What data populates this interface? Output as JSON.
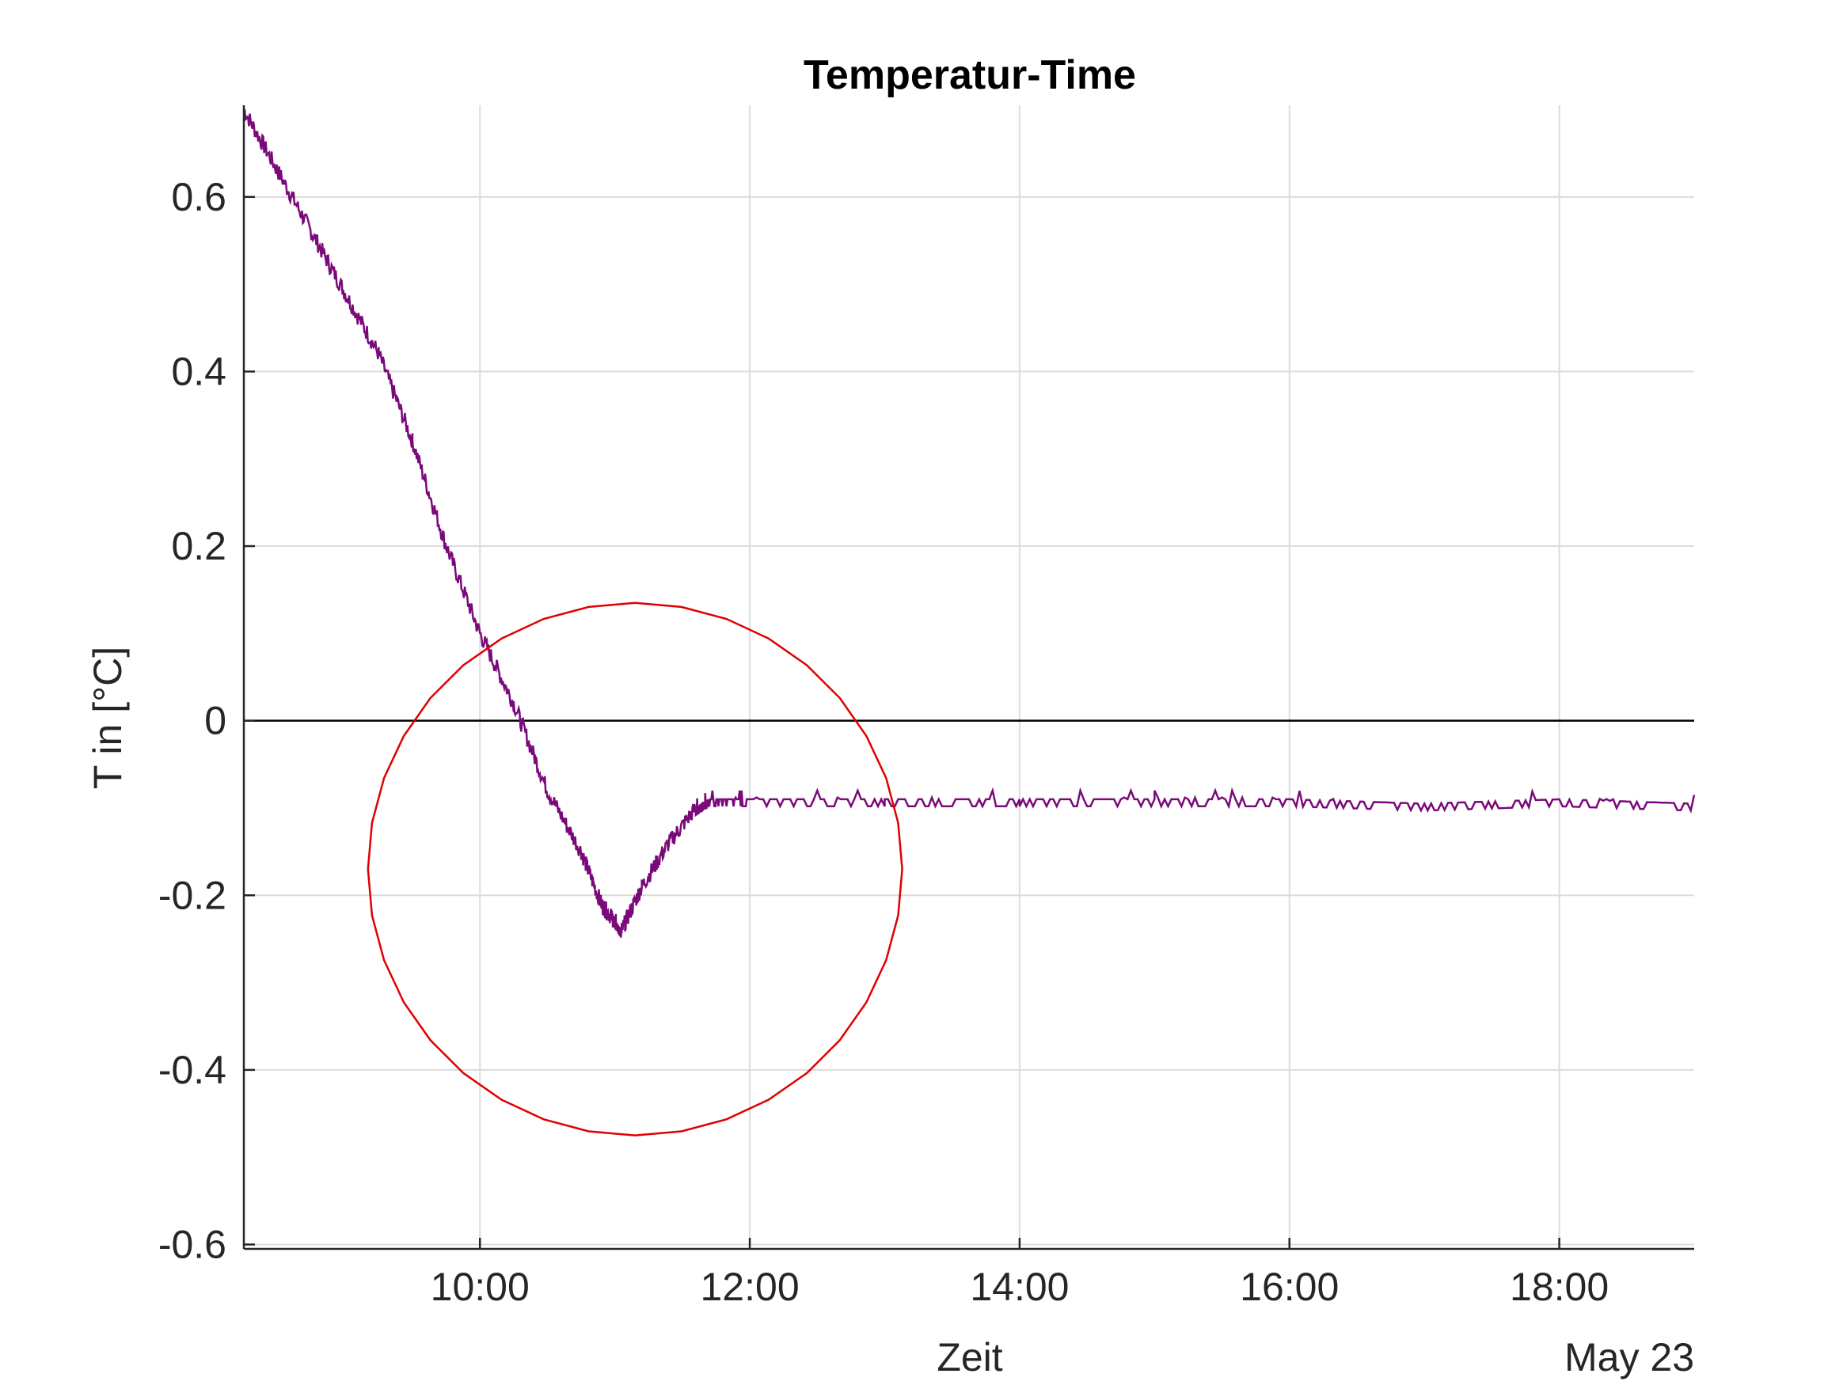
{
  "chart_data": {
    "type": "line",
    "title": "Temperatur-Time",
    "xlabel": "Zeit",
    "ylabel": "T in [°C]",
    "date_label": "May 23",
    "x_unit": "hours (time of day, May 23)",
    "xlim": [
      8.25,
      19.0
    ],
    "ylim": [
      -0.605,
      0.705
    ],
    "x_ticks": [
      10,
      12,
      14,
      16,
      18
    ],
    "x_tick_labels": [
      "10:00",
      "12:00",
      "14:00",
      "16:00",
      "18:00"
    ],
    "y_ticks": [
      -0.6,
      -0.4,
      -0.2,
      0,
      0.2,
      0.4,
      0.6
    ],
    "y_tick_labels": [
      "-0.6",
      "-0.4",
      "-0.2",
      "0",
      "0.2",
      "0.4",
      "0.6"
    ],
    "grid": true,
    "colors": {
      "series": "#7a0a7a",
      "annotation": "#e00000",
      "zero_line": "#000000",
      "grid": "#dcdcdc",
      "axis": "#262626"
    },
    "series": [
      {
        "x": [
          8.25,
          8.5,
          8.75,
          9.0,
          9.25,
          9.5,
          9.75,
          10.0,
          10.25,
          10.5,
          10.75,
          10.9,
          11.0,
          11.05,
          11.2,
          11.4,
          11.6,
          11.7,
          12.0,
          13.0,
          14.0,
          15.0,
          16.0,
          17.0,
          18.0,
          19.0
        ],
        "y": [
          0.7,
          0.63,
          0.56,
          0.49,
          0.42,
          0.32,
          0.2,
          0.1,
          0.02,
          -0.08,
          -0.15,
          -0.21,
          -0.23,
          -0.24,
          -0.19,
          -0.14,
          -0.1,
          -0.09,
          -0.09,
          -0.09,
          -0.09,
          -0.09,
          -0.09,
          -0.095,
          -0.09,
          -0.095
        ]
      }
    ],
    "annotations": [
      {
        "type": "circle",
        "center": [
          11.15,
          -0.17
        ],
        "radius_x": 1.98,
        "radius_y": 0.305
      }
    ]
  }
}
